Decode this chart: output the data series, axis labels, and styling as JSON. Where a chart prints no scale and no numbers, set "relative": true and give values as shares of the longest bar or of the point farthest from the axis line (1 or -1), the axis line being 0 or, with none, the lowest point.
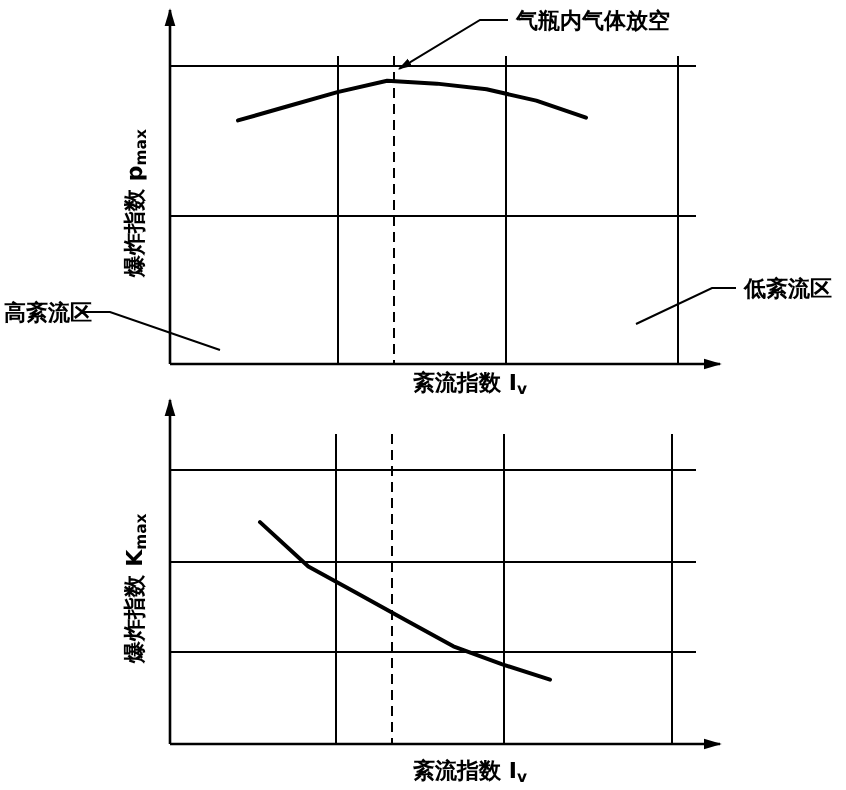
{
  "chart_data": [
    {
      "type": "line",
      "relative": true,
      "categories": [
        null,
        null,
        null,
        null,
        null,
        null,
        null,
        null
      ],
      "values": [
        0.86,
        0.91,
        0.96,
        1,
        0.99,
        0.97,
        0.93,
        0.87
      ],
      "color": "#000000",
      "grid": true,
      "ylabel": "爆炸指数 p$_{max}$",
      "xlabel": "紊流指数 I$_{v}$",
      "annotations": [
        "气瓶内气体放空",
        "高紊流区",
        "低紊流区"
      ]
    },
    {
      "type": "line",
      "relative": true,
      "categories": [
        null,
        null,
        null,
        null,
        null,
        null,
        null
      ],
      "values": [
        1,
        0.8,
        0.68,
        0.56,
        0.44,
        0.36,
        0.29
      ],
      "color": "#000000",
      "grid": true,
      "ylabel": "爆炸指数 K$_{max}$",
      "xlabel": "紊流指数 I$_{v}$"
    }
  ]
}
